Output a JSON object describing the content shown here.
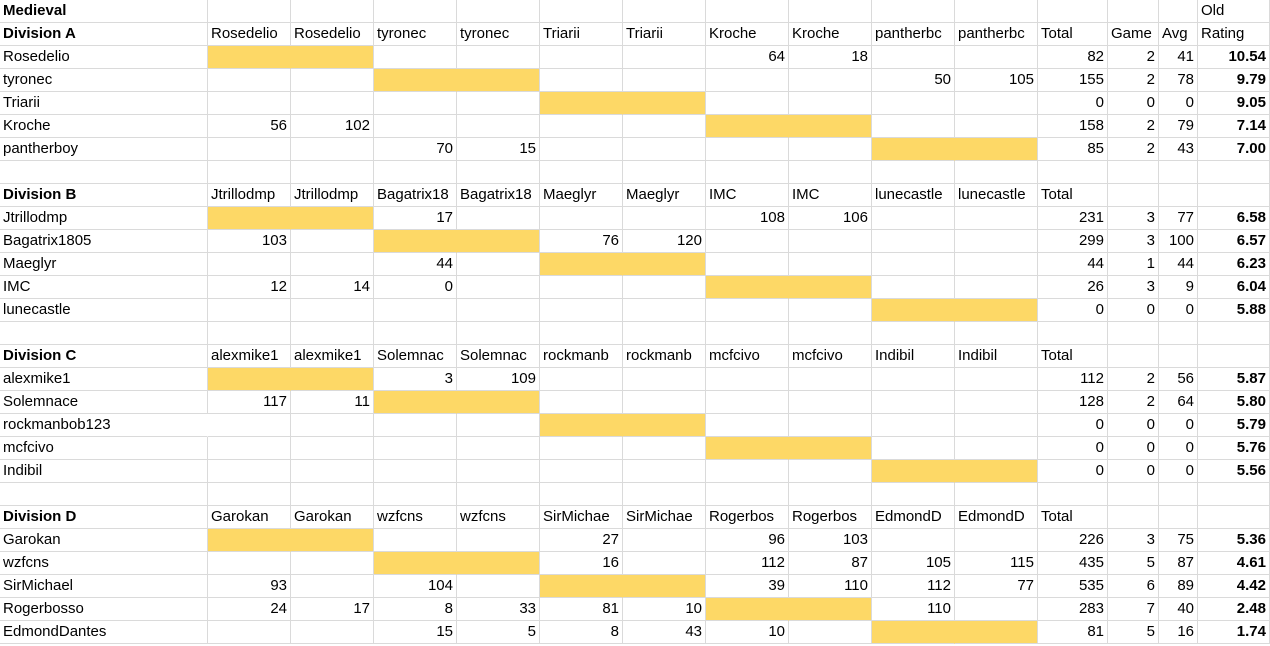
{
  "sheet": {
    "title": "Medieval",
    "old_label": "Old",
    "rating_label": "Rating",
    "game_label": "Game",
    "avg_label": "Avg",
    "total_label": "Total",
    "highlight_color": "#fdd866",
    "gridline_color": "#dadada",
    "divisions": [
      {
        "name": "Division A",
        "headers": [
          "Rosedelio",
          "Rosedelio",
          "tyronec",
          "tyronec",
          "Triarii",
          "Triarii",
          "Kroche",
          "Kroche",
          "pantherbc",
          "pantherbc"
        ],
        "rows": [
          {
            "player": "Rosedelio",
            "scores": [
              "",
              "",
              "",
              "",
              "",
              "",
              "64",
              "18",
              "",
              ""
            ],
            "total": "82",
            "game": "2",
            "avg": "41",
            "rating": "10.54"
          },
          {
            "player": "tyronec",
            "scores": [
              "",
              "",
              "",
              "",
              "",
              "",
              "",
              "",
              "50",
              "105"
            ],
            "total": "155",
            "game": "2",
            "avg": "78",
            "rating": "9.79"
          },
          {
            "player": "Triarii",
            "scores": [
              "",
              "",
              "",
              "",
              "",
              "",
              "",
              "",
              "",
              ""
            ],
            "total": "0",
            "game": "0",
            "avg": "0",
            "rating": "9.05"
          },
          {
            "player": "Kroche",
            "scores": [
              "56",
              "102",
              "",
              "",
              "",
              "",
              "",
              "",
              "",
              ""
            ],
            "total": "158",
            "game": "2",
            "avg": "79",
            "rating": "7.14"
          },
          {
            "player": "pantherboy",
            "scores": [
              "",
              "",
              "70",
              "15",
              "",
              "",
              "",
              "",
              "",
              ""
            ],
            "total": "85",
            "game": "2",
            "avg": "43",
            "rating": "7.00"
          }
        ]
      },
      {
        "name": "Division B",
        "headers": [
          "Jtrillodmp",
          "Jtrillodmp",
          "Bagatrix18",
          "Bagatrix18",
          "Maeglyr",
          "Maeglyr",
          "IMC",
          "IMC",
          "lunecastle",
          "lunecastle"
        ],
        "rows": [
          {
            "player": "Jtrillodmp",
            "scores": [
              "",
              "",
              "17",
              "",
              "",
              "",
              "108",
              "106",
              "",
              ""
            ],
            "total": "231",
            "game": "3",
            "avg": "77",
            "rating": "6.58"
          },
          {
            "player": "Bagatrix1805",
            "scores": [
              "103",
              "",
              "",
              "",
              "76",
              "120",
              "",
              "",
              "",
              ""
            ],
            "total": "299",
            "game": "3",
            "avg": "100",
            "rating": "6.57"
          },
          {
            "player": "Maeglyr",
            "scores": [
              "",
              "",
              "44",
              "",
              "",
              "",
              "",
              "",
              "",
              ""
            ],
            "total": "44",
            "game": "1",
            "avg": "44",
            "rating": "6.23"
          },
          {
            "player": "IMC",
            "scores": [
              "12",
              "14",
              "0",
              "",
              "",
              "",
              "",
              "",
              "",
              ""
            ],
            "total": "26",
            "game": "3",
            "avg": "9",
            "rating": "6.04"
          },
          {
            "player": "lunecastle",
            "scores": [
              "",
              "",
              "",
              "",
              "",
              "",
              "",
              "",
              "",
              ""
            ],
            "total": "0",
            "game": "0",
            "avg": "0",
            "rating": "5.88"
          }
        ]
      },
      {
        "name": "Division C",
        "headers": [
          "alexmike1",
          "alexmike1",
          "Solemnac",
          "Solemnac",
          "rockmanb",
          "rockmanb",
          "mcfcivo",
          "mcfcivo",
          "Indibil",
          "Indibil"
        ],
        "rows": [
          {
            "player": "alexmike1",
            "scores": [
              "",
              "",
              "3",
              "109",
              "",
              "",
              "",
              "",
              "",
              ""
            ],
            "total": "112",
            "game": "2",
            "avg": "56",
            "rating": "5.87"
          },
          {
            "player": "Solemnace",
            "scores": [
              "117",
              "11",
              "",
              "",
              "",
              "",
              "",
              "",
              "",
              ""
            ],
            "total": "128",
            "game": "2",
            "avg": "64",
            "rating": "5.80"
          },
          {
            "player": "rockmanbob123",
            "scores": [
              "",
              "",
              "",
              "",
              "",
              "",
              "",
              "",
              "",
              ""
            ],
            "total": "0",
            "game": "0",
            "avg": "0",
            "rating": "5.79"
          },
          {
            "player": "mcfcivo",
            "scores": [
              "",
              "",
              "",
              "",
              "",
              "",
              "",
              "",
              "",
              ""
            ],
            "total": "0",
            "game": "0",
            "avg": "0",
            "rating": "5.76"
          },
          {
            "player": "Indibil",
            "scores": [
              "",
              "",
              "",
              "",
              "",
              "",
              "",
              "",
              "",
              ""
            ],
            "total": "0",
            "game": "0",
            "avg": "0",
            "rating": "5.56"
          }
        ]
      },
      {
        "name": "Division D",
        "headers": [
          "Garokan",
          "Garokan",
          "wzfcns",
          "wzfcns",
          "SirMichae",
          "SirMichae",
          "Rogerbos",
          "Rogerbos",
          "EdmondD",
          "EdmondD"
        ],
        "rows": [
          {
            "player": "Garokan",
            "scores": [
              "",
              "",
              "",
              "",
              "27",
              "",
              "96",
              "103",
              "",
              ""
            ],
            "total": "226",
            "game": "3",
            "avg": "75",
            "rating": "5.36"
          },
          {
            "player": "wzfcns",
            "scores": [
              "",
              "",
              "",
              "",
              "16",
              "",
              "112",
              "87",
              "105",
              "115"
            ],
            "total": "435",
            "game": "5",
            "avg": "87",
            "rating": "4.61"
          },
          {
            "player": "SirMichael",
            "scores": [
              "93",
              "",
              "104",
              "",
              "",
              "",
              "39",
              "110",
              "112",
              "77"
            ],
            "total": "535",
            "game": "6",
            "avg": "89",
            "rating": "4.42"
          },
          {
            "player": "Rogerbosso",
            "scores": [
              "24",
              "17",
              "8",
              "33",
              "81",
              "10",
              "",
              "",
              "110",
              ""
            ],
            "total": "283",
            "game": "7",
            "avg": "40",
            "rating": "2.48"
          },
          {
            "player": "EdmondDantes",
            "scores": [
              "",
              "",
              "15",
              "5",
              "8",
              "43",
              "10",
              "",
              "",
              ""
            ],
            "total": "81",
            "game": "5",
            "avg": "16",
            "rating": "1.74"
          }
        ]
      }
    ]
  }
}
